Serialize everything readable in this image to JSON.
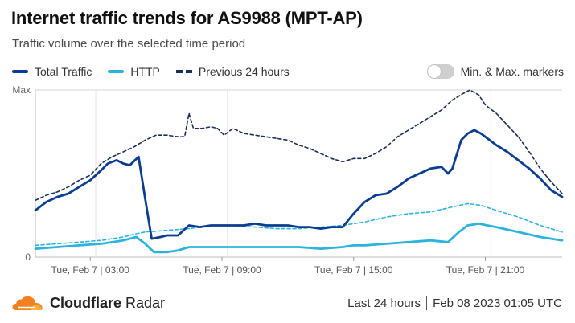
{
  "header": {
    "title": "Internet traffic trends for AS9988 (MPT-AP)",
    "subtitle": "Traffic volume over the selected time period"
  },
  "legend": {
    "items": [
      {
        "label": "Total Traffic",
        "color": "#0b3d91",
        "style": "solid"
      },
      {
        "label": "HTTP",
        "color": "#2bb3de",
        "style": "solid"
      },
      {
        "label": "Previous 24 hours",
        "color": "#1a2f5a",
        "style": "dashed"
      }
    ]
  },
  "toggle": {
    "label": "Min. & Max. markers",
    "on": false
  },
  "footer": {
    "brand_bold": "Cloudflare",
    "brand_light": " Radar",
    "range": "Last 24 hours",
    "timestamp": "Feb 08 2023 01:05 UTC"
  },
  "chart_data": {
    "type": "line",
    "x_unit": "hours since Feb 7 01:00 UTC",
    "xlim": [
      0,
      24
    ],
    "ylim": [
      0,
      1
    ],
    "y_tick_labels": [
      {
        "value": 1,
        "label": "Max"
      },
      {
        "value": 0,
        "label": "0"
      }
    ],
    "x_ticks": [
      {
        "value": 2.5,
        "label": "Tue, Feb 7 | 03:00"
      },
      {
        "value": 8.5,
        "label": "Tue, Feb 7 | 09:00"
      },
      {
        "value": 14.5,
        "label": "Tue, Feb 7 | 15:00"
      },
      {
        "value": 20.5,
        "label": "Tue, Feb 7 | 21:00"
      }
    ],
    "grid_x": [
      2.75,
      8.75,
      14.75,
      20.75
    ],
    "series": [
      {
        "name": "Previous 24 hours",
        "color": "#1a2f5a",
        "style": "dashed",
        "points": [
          [
            0,
            0.34
          ],
          [
            0.5,
            0.37
          ],
          [
            1,
            0.39
          ],
          [
            1.5,
            0.42
          ],
          [
            2,
            0.46
          ],
          [
            2.5,
            0.49
          ],
          [
            3,
            0.56
          ],
          [
            3.5,
            0.6
          ],
          [
            4,
            0.63
          ],
          [
            4.5,
            0.66
          ],
          [
            5,
            0.7
          ],
          [
            5.5,
            0.73
          ],
          [
            6,
            0.73
          ],
          [
            6.5,
            0.72
          ],
          [
            6.8,
            0.72
          ],
          [
            7,
            0.86
          ],
          [
            7.2,
            0.77
          ],
          [
            7.6,
            0.77
          ],
          [
            8,
            0.78
          ],
          [
            8.3,
            0.77
          ],
          [
            8.6,
            0.73
          ],
          [
            9,
            0.77
          ],
          [
            9.5,
            0.74
          ],
          [
            10,
            0.73
          ],
          [
            10.5,
            0.72
          ],
          [
            11,
            0.71
          ],
          [
            11.5,
            0.7
          ],
          [
            12,
            0.67
          ],
          [
            12.5,
            0.65
          ],
          [
            13,
            0.62
          ],
          [
            13.5,
            0.59
          ],
          [
            14,
            0.57
          ],
          [
            14.5,
            0.59
          ],
          [
            15,
            0.59
          ],
          [
            15.5,
            0.62
          ],
          [
            16,
            0.66
          ],
          [
            16.5,
            0.72
          ],
          [
            17,
            0.76
          ],
          [
            17.5,
            0.8
          ],
          [
            18,
            0.84
          ],
          [
            18.5,
            0.88
          ],
          [
            19,
            0.94
          ],
          [
            19.5,
            0.98
          ],
          [
            19.8,
            1.0
          ],
          [
            20.2,
            0.97
          ],
          [
            20.5,
            0.91
          ],
          [
            21,
            0.86
          ],
          [
            21.5,
            0.79
          ],
          [
            22,
            0.72
          ],
          [
            22.5,
            0.63
          ],
          [
            23,
            0.53
          ],
          [
            23.5,
            0.45
          ],
          [
            24,
            0.38
          ]
        ]
      },
      {
        "name": "Total Traffic",
        "color": "#0b3d91",
        "style": "solid",
        "points": [
          [
            0,
            0.28
          ],
          [
            0.5,
            0.33
          ],
          [
            1,
            0.36
          ],
          [
            1.5,
            0.38
          ],
          [
            2,
            0.42
          ],
          [
            2.5,
            0.46
          ],
          [
            3,
            0.52
          ],
          [
            3.3,
            0.56
          ],
          [
            3.7,
            0.58
          ],
          [
            4,
            0.56
          ],
          [
            4.3,
            0.55
          ],
          [
            4.7,
            0.6
          ],
          [
            5,
            0.35
          ],
          [
            5.3,
            0.11
          ],
          [
            5.7,
            0.12
          ],
          [
            6,
            0.13
          ],
          [
            6.5,
            0.13
          ],
          [
            7,
            0.19
          ],
          [
            7.5,
            0.18
          ],
          [
            8,
            0.19
          ],
          [
            8.5,
            0.19
          ],
          [
            9,
            0.19
          ],
          [
            9.5,
            0.19
          ],
          [
            10,
            0.2
          ],
          [
            10.5,
            0.19
          ],
          [
            11,
            0.19
          ],
          [
            11.5,
            0.19
          ],
          [
            12,
            0.18
          ],
          [
            12.5,
            0.18
          ],
          [
            13,
            0.17
          ],
          [
            13.5,
            0.18
          ],
          [
            14,
            0.18
          ],
          [
            14.5,
            0.26
          ],
          [
            15,
            0.33
          ],
          [
            15.5,
            0.37
          ],
          [
            16,
            0.38
          ],
          [
            16.5,
            0.42
          ],
          [
            17,
            0.47
          ],
          [
            17.5,
            0.5
          ],
          [
            18,
            0.53
          ],
          [
            18.5,
            0.54
          ],
          [
            18.8,
            0.5
          ],
          [
            19,
            0.53
          ],
          [
            19.4,
            0.7
          ],
          [
            19.7,
            0.74
          ],
          [
            20,
            0.76
          ],
          [
            20.3,
            0.74
          ],
          [
            20.7,
            0.7
          ],
          [
            21,
            0.67
          ],
          [
            21.5,
            0.63
          ],
          [
            22,
            0.58
          ],
          [
            22.5,
            0.53
          ],
          [
            23,
            0.47
          ],
          [
            23.5,
            0.4
          ],
          [
            24,
            0.36
          ]
        ]
      },
      {
        "name": "HTTP",
        "color": "#2bb3de",
        "style": "solid",
        "points": [
          [
            0,
            0.05
          ],
          [
            1,
            0.06
          ],
          [
            2,
            0.07
          ],
          [
            3,
            0.08
          ],
          [
            4,
            0.1
          ],
          [
            4.6,
            0.12
          ],
          [
            5,
            0.08
          ],
          [
            5.4,
            0.03
          ],
          [
            6,
            0.03
          ],
          [
            6.5,
            0.04
          ],
          [
            7,
            0.06
          ],
          [
            7.5,
            0.06
          ],
          [
            8,
            0.06
          ],
          [
            9,
            0.06
          ],
          [
            10,
            0.06
          ],
          [
            11,
            0.06
          ],
          [
            12,
            0.06
          ],
          [
            13,
            0.05
          ],
          [
            14,
            0.06
          ],
          [
            14.5,
            0.07
          ],
          [
            15,
            0.07
          ],
          [
            16,
            0.08
          ],
          [
            17,
            0.09
          ],
          [
            18,
            0.1
          ],
          [
            18.8,
            0.09
          ],
          [
            19.3,
            0.15
          ],
          [
            19.7,
            0.19
          ],
          [
            20.2,
            0.2
          ],
          [
            21,
            0.18
          ],
          [
            22,
            0.15
          ],
          [
            23,
            0.12
          ],
          [
            24,
            0.1
          ]
        ]
      },
      {
        "name": "Previous 24 hours (HTTP)",
        "color": "#2bb3de",
        "style": "dashed",
        "points": [
          [
            0,
            0.07
          ],
          [
            1,
            0.08
          ],
          [
            2,
            0.09
          ],
          [
            3,
            0.1
          ],
          [
            4,
            0.12
          ],
          [
            4.6,
            0.14
          ],
          [
            5,
            0.15
          ],
          [
            6,
            0.16
          ],
          [
            7,
            0.17
          ],
          [
            7.5,
            0.18
          ],
          [
            8,
            0.19
          ],
          [
            9,
            0.19
          ],
          [
            10,
            0.18
          ],
          [
            11,
            0.17
          ],
          [
            12,
            0.17
          ],
          [
            13,
            0.18
          ],
          [
            14,
            0.19
          ],
          [
            15,
            0.21
          ],
          [
            16,
            0.24
          ],
          [
            17,
            0.26
          ],
          [
            18,
            0.27
          ],
          [
            19,
            0.3
          ],
          [
            19.7,
            0.32
          ],
          [
            20.3,
            0.31
          ],
          [
            21,
            0.28
          ],
          [
            22,
            0.24
          ],
          [
            23,
            0.19
          ],
          [
            24,
            0.15
          ]
        ]
      }
    ]
  }
}
